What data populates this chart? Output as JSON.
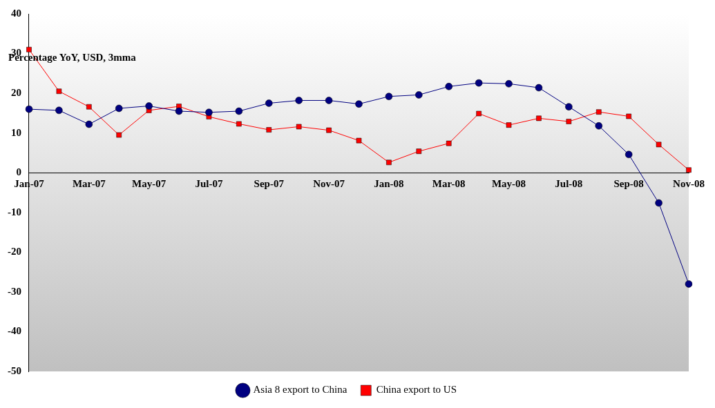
{
  "chart_data": {
    "type": "line",
    "ylabel": "Percentage YoY, USD, 3mma",
    "categories": [
      "Jan-07",
      null,
      "Mar-07",
      null,
      "May-07",
      null,
      "Jul-07",
      null,
      "Sep-07",
      null,
      "Nov-07",
      null,
      "Jan-08",
      null,
      "Mar-08",
      null,
      "May-08",
      null,
      "Jul-08",
      null,
      "Sep-08",
      null,
      "Nov-08"
    ],
    "series": [
      {
        "name": "Asia 8 export to China",
        "color": "#000080",
        "marker": "circle",
        "values": [
          16,
          15.7,
          12.2,
          16.2,
          16.8,
          15.5,
          15.2,
          15.5,
          17.5,
          18.2,
          18.2,
          17.3,
          19.2,
          19.6,
          21.7,
          22.6,
          22.4,
          21.4,
          16.6,
          11.8,
          4.6,
          -7.6,
          -28
        ]
      },
      {
        "name": "China export to US",
        "color": "#ff0000",
        "marker": "square",
        "values": [
          31,
          20.5,
          16.6,
          9.5,
          15.7,
          16.7,
          14.1,
          12.3,
          10.8,
          11.6,
          10.7,
          8.1,
          2.6,
          5.4,
          7.4,
          14.9,
          12,
          13.7,
          12.9,
          15.3,
          14.2,
          7.1,
          0.7
        ]
      }
    ],
    "ylim": [
      -50,
      40
    ],
    "yticks": [
      -50,
      -40,
      -30,
      -20,
      -10,
      0,
      10,
      20,
      30,
      40
    ],
    "grid": false,
    "legend": "bottom"
  }
}
